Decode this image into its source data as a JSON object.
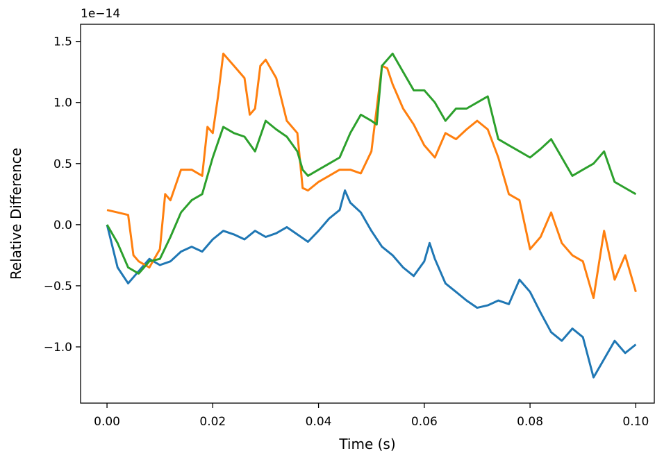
{
  "chart_data": {
    "type": "line",
    "title": "",
    "xlabel": "Time (s)",
    "ylabel": "Relative Difference",
    "offset_label": "1e−14",
    "xlim": [
      -0.005,
      0.1035
    ],
    "ylim": [
      -1.46,
      1.64
    ],
    "x_ticks": [
      0.0,
      0.02,
      0.04,
      0.06,
      0.08,
      0.1
    ],
    "x_tick_labels": [
      "0.00",
      "0.02",
      "0.04",
      "0.06",
      "0.08",
      "0.10"
    ],
    "y_ticks": [
      -1.0,
      -0.5,
      0.0,
      0.5,
      1.0,
      1.5
    ],
    "y_tick_labels": [
      "−1.0",
      "−0.5",
      "0.0",
      "0.5",
      "1.0",
      "1.5"
    ],
    "grid": false,
    "legend": false,
    "series": [
      {
        "color": "#1f77b4",
        "x": [
          0.0,
          0.002,
          0.004,
          0.006,
          0.008,
          0.01,
          0.012,
          0.014,
          0.016,
          0.018,
          0.02,
          0.022,
          0.024,
          0.026,
          0.028,
          0.03,
          0.032,
          0.034,
          0.036,
          0.038,
          0.04,
          0.042,
          0.044,
          0.045,
          0.046,
          0.048,
          0.05,
          0.052,
          0.054,
          0.056,
          0.058,
          0.06,
          0.061,
          0.062,
          0.064,
          0.066,
          0.068,
          0.07,
          0.072,
          0.074,
          0.076,
          0.078,
          0.08,
          0.082,
          0.084,
          0.086,
          0.088,
          0.09,
          0.092,
          0.094,
          0.096,
          0.098,
          0.1
        ],
        "y": [
          0.0,
          -0.35,
          -0.48,
          -0.38,
          -0.28,
          -0.33,
          -0.3,
          -0.22,
          -0.18,
          -0.22,
          -0.12,
          -0.05,
          -0.08,
          -0.12,
          -0.05,
          -0.1,
          -0.07,
          -0.02,
          -0.08,
          -0.14,
          -0.05,
          0.05,
          0.12,
          0.28,
          0.18,
          0.1,
          -0.05,
          -0.18,
          -0.25,
          -0.35,
          -0.42,
          -0.3,
          -0.15,
          -0.28,
          -0.48,
          -0.55,
          -0.62,
          -0.68,
          -0.66,
          -0.62,
          -0.65,
          -0.45,
          -0.55,
          -0.72,
          -0.88,
          -0.95,
          -0.85,
          -0.92,
          -1.25,
          -1.1,
          -0.95,
          -1.05,
          -0.98
        ]
      },
      {
        "color": "#ff7f0e",
        "x": [
          0.0,
          0.002,
          0.004,
          0.005,
          0.006,
          0.008,
          0.01,
          0.011,
          0.012,
          0.014,
          0.016,
          0.018,
          0.019,
          0.02,
          0.021,
          0.022,
          0.024,
          0.026,
          0.027,
          0.028,
          0.029,
          0.03,
          0.032,
          0.034,
          0.036,
          0.037,
          0.038,
          0.04,
          0.042,
          0.044,
          0.046,
          0.048,
          0.05,
          0.052,
          0.053,
          0.054,
          0.056,
          0.058,
          0.06,
          0.062,
          0.064,
          0.066,
          0.068,
          0.07,
          0.072,
          0.074,
          0.076,
          0.078,
          0.08,
          0.082,
          0.084,
          0.086,
          0.088,
          0.09,
          0.092,
          0.094,
          0.096,
          0.098,
          0.1
        ],
        "y": [
          0.12,
          0.1,
          0.08,
          -0.25,
          -0.3,
          -0.35,
          -0.2,
          0.25,
          0.2,
          0.45,
          0.45,
          0.4,
          0.8,
          0.75,
          1.05,
          1.4,
          1.3,
          1.2,
          0.9,
          0.95,
          1.3,
          1.35,
          1.2,
          0.85,
          0.75,
          0.3,
          0.28,
          0.35,
          0.4,
          0.45,
          0.45,
          0.42,
          0.6,
          1.3,
          1.28,
          1.15,
          0.95,
          0.82,
          0.65,
          0.55,
          0.75,
          0.7,
          0.78,
          0.85,
          0.78,
          0.55,
          0.25,
          0.2,
          -0.2,
          -0.1,
          0.1,
          -0.15,
          -0.25,
          -0.3,
          -0.6,
          -0.05,
          -0.45,
          -0.25,
          -0.55
        ]
      },
      {
        "color": "#2ca02c",
        "x": [
          0.0,
          0.002,
          0.004,
          0.006,
          0.008,
          0.01,
          0.012,
          0.014,
          0.016,
          0.018,
          0.02,
          0.022,
          0.024,
          0.026,
          0.028,
          0.03,
          0.032,
          0.034,
          0.036,
          0.037,
          0.038,
          0.04,
          0.042,
          0.044,
          0.046,
          0.048,
          0.05,
          0.051,
          0.052,
          0.054,
          0.056,
          0.058,
          0.06,
          0.062,
          0.064,
          0.066,
          0.068,
          0.07,
          0.072,
          0.074,
          0.076,
          0.078,
          0.08,
          0.082,
          0.084,
          0.086,
          0.088,
          0.09,
          0.092,
          0.094,
          0.096,
          0.098,
          0.1
        ],
        "y": [
          0.0,
          -0.15,
          -0.35,
          -0.4,
          -0.3,
          -0.28,
          -0.1,
          0.1,
          0.2,
          0.25,
          0.55,
          0.8,
          0.75,
          0.72,
          0.6,
          0.85,
          0.78,
          0.72,
          0.6,
          0.45,
          0.4,
          0.45,
          0.5,
          0.55,
          0.75,
          0.9,
          0.85,
          0.82,
          1.3,
          1.4,
          1.25,
          1.1,
          1.1,
          1.0,
          0.85,
          0.95,
          0.95,
          1.0,
          1.05,
          0.7,
          0.65,
          0.6,
          0.55,
          0.62,
          0.7,
          0.55,
          0.4,
          0.45,
          0.5,
          0.6,
          0.35,
          0.3,
          0.25
        ]
      }
    ]
  }
}
